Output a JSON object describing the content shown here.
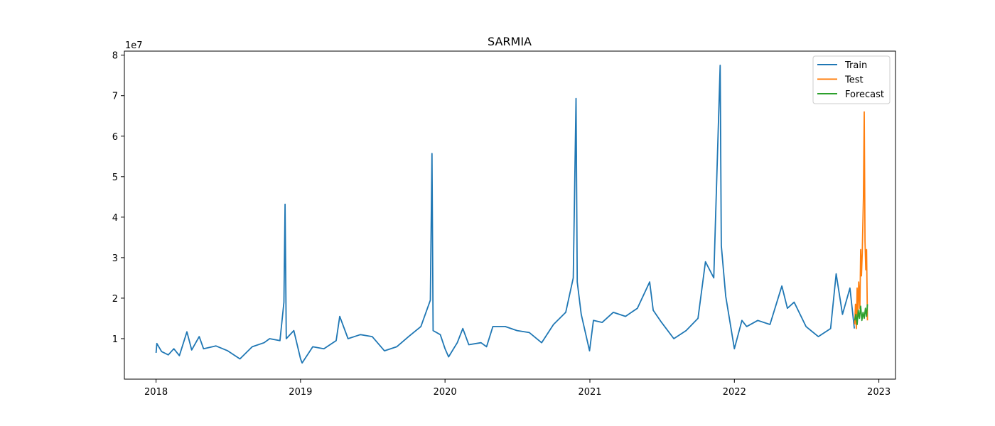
{
  "chart_data": {
    "type": "line",
    "title": "SARMIA",
    "xlabel": "",
    "ylabel": "",
    "y_offset_label": "1e7",
    "x_ticks": [
      "2018",
      "2019",
      "2020",
      "2021",
      "2022",
      "2023"
    ],
    "y_ticks": [
      "1",
      "2",
      "3",
      "4",
      "5",
      "6",
      "7",
      "8"
    ],
    "xlim": [
      "2017-10-13",
      "2023-02-12"
    ],
    "ylim": [
      0,
      8.1
    ],
    "y_unit_multiplier": 10000000,
    "grid": false,
    "legend_position": "top-right",
    "series": [
      {
        "name": "Train",
        "color": "#1f77b4",
        "points": [
          [
            "2018-01-01",
            0.65
          ],
          [
            "2018-01-03",
            0.88
          ],
          [
            "2018-01-15",
            0.68
          ],
          [
            "2018-02-01",
            0.6
          ],
          [
            "2018-02-15",
            0.75
          ],
          [
            "2018-03-01",
            0.58
          ],
          [
            "2018-03-20",
            1.17
          ],
          [
            "2018-04-01",
            0.72
          ],
          [
            "2018-04-20",
            1.05
          ],
          [
            "2018-05-01",
            0.75
          ],
          [
            "2018-06-01",
            0.82
          ],
          [
            "2018-07-01",
            0.7
          ],
          [
            "2018-08-01",
            0.5
          ],
          [
            "2018-09-01",
            0.8
          ],
          [
            "2018-10-01",
            0.9
          ],
          [
            "2018-10-15",
            1.0
          ],
          [
            "2018-11-10",
            0.95
          ],
          [
            "2018-11-20",
            1.9
          ],
          [
            "2018-11-23",
            4.32
          ],
          [
            "2018-11-26",
            1.0
          ],
          [
            "2018-12-15",
            1.2
          ],
          [
            "2019-01-01",
            0.5
          ],
          [
            "2019-01-05",
            0.4
          ],
          [
            "2019-02-01",
            0.8
          ],
          [
            "2019-03-01",
            0.75
          ],
          [
            "2019-04-01",
            0.95
          ],
          [
            "2019-04-10",
            1.55
          ],
          [
            "2019-05-01",
            1.0
          ],
          [
            "2019-06-01",
            1.1
          ],
          [
            "2019-07-01",
            1.05
          ],
          [
            "2019-08-01",
            0.7
          ],
          [
            "2019-09-01",
            0.8
          ],
          [
            "2019-10-01",
            1.05
          ],
          [
            "2019-11-01",
            1.3
          ],
          [
            "2019-11-25",
            1.95
          ],
          [
            "2019-11-29",
            5.57
          ],
          [
            "2019-12-02",
            1.2
          ],
          [
            "2019-12-20",
            1.1
          ],
          [
            "2020-01-01",
            0.75
          ],
          [
            "2020-01-10",
            0.55
          ],
          [
            "2020-02-01",
            0.9
          ],
          [
            "2020-02-15",
            1.25
          ],
          [
            "2020-03-01",
            0.85
          ],
          [
            "2020-04-01",
            0.9
          ],
          [
            "2020-04-15",
            0.8
          ],
          [
            "2020-05-01",
            1.3
          ],
          [
            "2020-06-01",
            1.3
          ],
          [
            "2020-07-01",
            1.2
          ],
          [
            "2020-08-01",
            1.15
          ],
          [
            "2020-09-01",
            0.9
          ],
          [
            "2020-10-01",
            1.35
          ],
          [
            "2020-11-01",
            1.65
          ],
          [
            "2020-11-20",
            2.5
          ],
          [
            "2020-11-27",
            6.93
          ],
          [
            "2020-11-30",
            2.4
          ],
          [
            "2020-12-10",
            1.6
          ],
          [
            "2020-12-31",
            0.7
          ],
          [
            "2021-01-10",
            1.45
          ],
          [
            "2021-02-01",
            1.4
          ],
          [
            "2021-03-01",
            1.65
          ],
          [
            "2021-04-01",
            1.55
          ],
          [
            "2021-05-01",
            1.75
          ],
          [
            "2021-06-01",
            2.4
          ],
          [
            "2021-06-10",
            1.7
          ],
          [
            "2021-07-01",
            1.4
          ],
          [
            "2021-08-01",
            1.0
          ],
          [
            "2021-09-01",
            1.2
          ],
          [
            "2021-10-01",
            1.5
          ],
          [
            "2021-10-20",
            2.9
          ],
          [
            "2021-11-10",
            2.5
          ],
          [
            "2021-11-26",
            7.75
          ],
          [
            "2021-11-29",
            3.3
          ],
          [
            "2021-12-10",
            2.05
          ],
          [
            "2022-01-01",
            0.75
          ],
          [
            "2022-01-20",
            1.45
          ],
          [
            "2022-02-01",
            1.3
          ],
          [
            "2022-03-01",
            1.45
          ],
          [
            "2022-04-01",
            1.35
          ],
          [
            "2022-05-01",
            2.3
          ],
          [
            "2022-05-15",
            1.75
          ],
          [
            "2022-06-01",
            1.9
          ],
          [
            "2022-07-01",
            1.3
          ],
          [
            "2022-08-01",
            1.05
          ],
          [
            "2022-09-01",
            1.25
          ],
          [
            "2022-09-15",
            2.6
          ],
          [
            "2022-10-01",
            1.6
          ],
          [
            "2022-10-20",
            2.25
          ],
          [
            "2022-10-31",
            1.25
          ]
        ]
      },
      {
        "name": "Test",
        "color": "#ff7f0e",
        "points": [
          [
            "2022-11-01",
            1.35
          ],
          [
            "2022-11-03",
            1.85
          ],
          [
            "2022-11-05",
            1.25
          ],
          [
            "2022-11-07",
            2.25
          ],
          [
            "2022-11-09",
            1.55
          ],
          [
            "2022-11-11",
            2.4
          ],
          [
            "2022-11-14",
            1.75
          ],
          [
            "2022-11-16",
            3.2
          ],
          [
            "2022-11-18",
            2.55
          ],
          [
            "2022-11-20",
            3.1
          ],
          [
            "2022-11-23",
            4.5
          ],
          [
            "2022-11-25",
            6.6
          ],
          [
            "2022-11-27",
            3.4
          ],
          [
            "2022-11-29",
            2.7
          ],
          [
            "2022-12-01",
            3.2
          ],
          [
            "2022-12-03",
            1.45
          ]
        ]
      },
      {
        "name": "Forecast",
        "color": "#2ca02c",
        "points": [
          [
            "2022-11-01",
            1.45
          ],
          [
            "2022-11-04",
            1.6
          ],
          [
            "2022-11-07",
            1.35
          ],
          [
            "2022-11-10",
            1.7
          ],
          [
            "2022-11-13",
            1.5
          ],
          [
            "2022-11-16",
            1.8
          ],
          [
            "2022-11-19",
            1.45
          ],
          [
            "2022-11-22",
            1.65
          ],
          [
            "2022-11-25",
            1.5
          ],
          [
            "2022-11-28",
            1.75
          ],
          [
            "2022-12-01",
            1.55
          ],
          [
            "2022-12-03",
            1.85
          ]
        ]
      }
    ]
  }
}
